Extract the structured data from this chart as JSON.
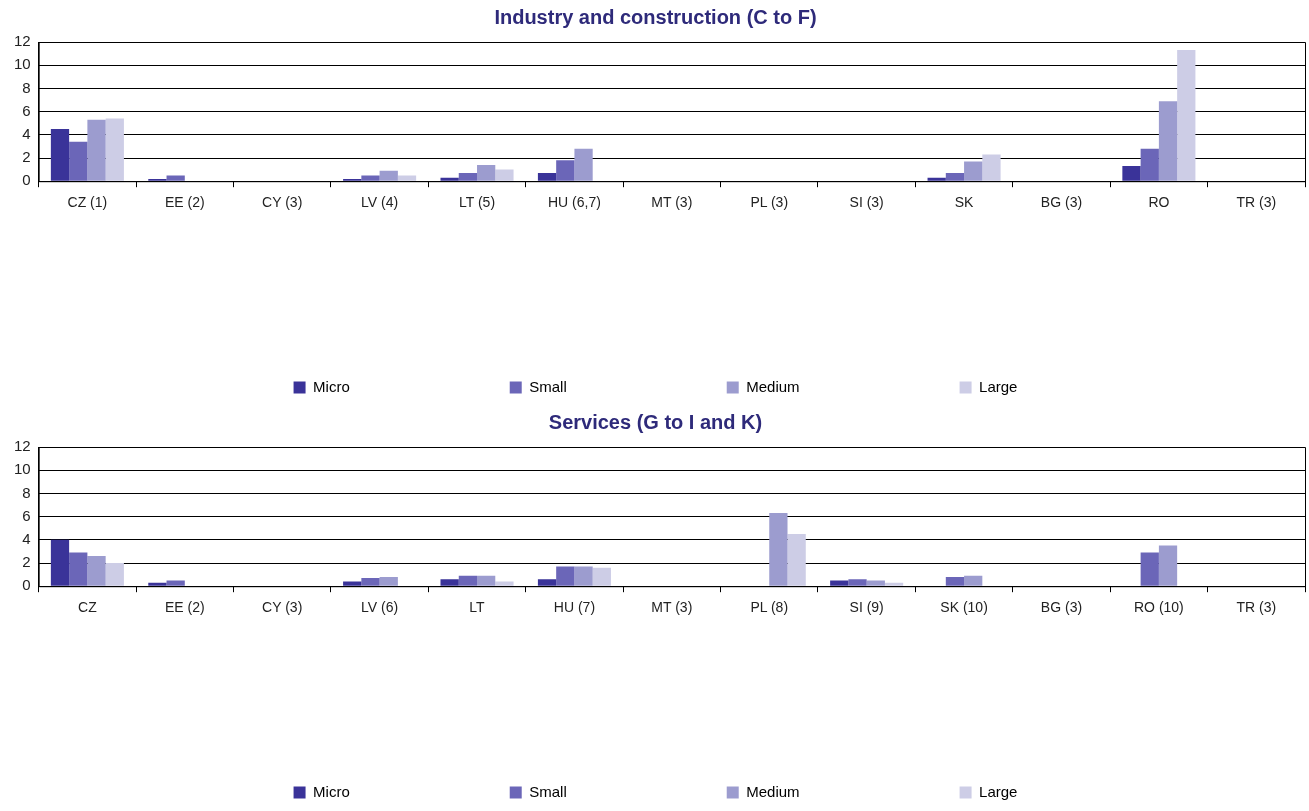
{
  "chart_data": [
    {
      "type": "bar",
      "title": "Industry and construction (C to F)",
      "categories": [
        "CZ (1)",
        "EE (2)",
        "CY (3)",
        "LV (4)",
        "LT (5)",
        "HU (6,7)",
        "MT (3)",
        "PL (3)",
        "SI (3)",
        "SK",
        "BG (3)",
        "RO",
        "TR (3)"
      ],
      "series": [
        {
          "name": "Micro",
          "color": "#3a3399",
          "values": [
            4.5,
            0.2,
            null,
            0.2,
            0.3,
            0.7,
            null,
            null,
            null,
            0.3,
            null,
            1.3,
            null
          ]
        },
        {
          "name": "Small",
          "color": "#6b66b8",
          "values": [
            3.4,
            0.5,
            null,
            0.5,
            0.7,
            1.8,
            null,
            null,
            null,
            0.7,
            null,
            2.8,
            null
          ]
        },
        {
          "name": "Medium",
          "color": "#9c9ccf",
          "values": [
            5.3,
            null,
            null,
            0.9,
            1.4,
            2.8,
            null,
            null,
            null,
            1.7,
            null,
            6.9,
            null
          ]
        },
        {
          "name": "Large",
          "color": "#cdcde6",
          "values": [
            5.4,
            null,
            null,
            0.5,
            1.0,
            null,
            null,
            null,
            null,
            2.3,
            null,
            11.3,
            null
          ]
        }
      ],
      "ylim": [
        0,
        12
      ],
      "yticks": [
        0,
        2,
        4,
        6,
        8,
        10,
        12
      ],
      "grid": "y",
      "legend": "bottom"
    },
    {
      "type": "bar",
      "title": "Services (G to I and K)",
      "categories": [
        "CZ",
        "EE (2)",
        "CY (3)",
        "LV (6)",
        "LT",
        "HU (7)",
        "MT (3)",
        "PL (8)",
        "SI (9)",
        "SK (10)",
        "BG (3)",
        "RO (10)",
        "TR (3)"
      ],
      "series": [
        {
          "name": "Micro",
          "color": "#3a3399",
          "values": [
            4.0,
            0.3,
            null,
            0.4,
            0.6,
            0.6,
            null,
            null,
            0.5,
            null,
            null,
            null,
            null
          ]
        },
        {
          "name": "Small",
          "color": "#6b66b8",
          "values": [
            2.9,
            0.5,
            null,
            0.7,
            0.9,
            1.7,
            null,
            null,
            0.6,
            0.8,
            null,
            2.9,
            null
          ]
        },
        {
          "name": "Medium",
          "color": "#9c9ccf",
          "values": [
            2.6,
            null,
            null,
            0.8,
            0.9,
            1.7,
            null,
            6.3,
            0.5,
            0.9,
            null,
            3.5,
            null
          ]
        },
        {
          "name": "Large",
          "color": "#cdcde6",
          "values": [
            2.0,
            null,
            null,
            null,
            0.4,
            1.6,
            null,
            4.5,
            0.3,
            null,
            null,
            null,
            null
          ]
        }
      ],
      "ylim": [
        0,
        12
      ],
      "yticks": [
        0,
        2,
        4,
        6,
        8,
        10,
        12
      ],
      "grid": "y",
      "legend": "bottom"
    }
  ]
}
